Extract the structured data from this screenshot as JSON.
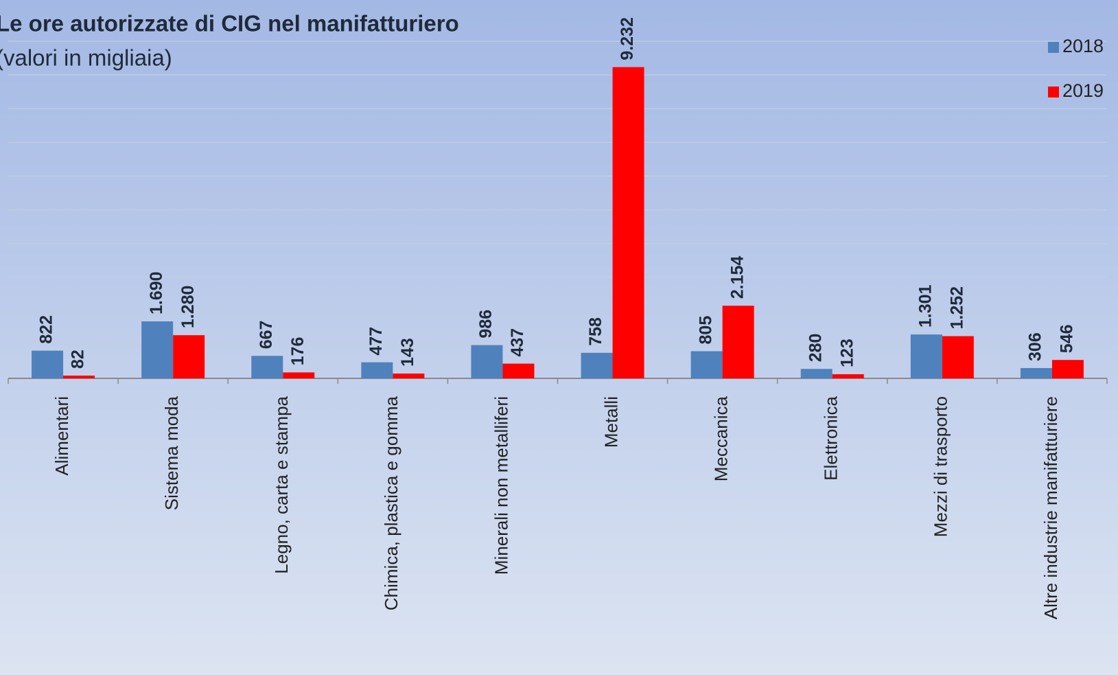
{
  "chart_data": {
    "type": "bar",
    "title": "Le ore autorizzate di CIG nel manifatturiero",
    "subtitle": "(valori in migliaia)",
    "categories": [
      "Alimentari",
      "Sistema moda",
      "Legno, carta e stampa",
      "Chimica, plastica e gomma",
      "Minerali non metalliferi",
      "Metalli",
      "Meccanica",
      "Elettronica",
      "Mezzi di trasporto",
      "Altre industrie manifatturiere"
    ],
    "series": [
      {
        "name": "2018",
        "color": "#4f81bd",
        "values": [
          822,
          1690,
          667,
          477,
          986,
          758,
          805,
          280,
          1301,
          306
        ],
        "value_labels": [
          "822",
          "1.690",
          "667",
          "477",
          "986",
          "758",
          "805",
          "280",
          "1.301",
          "306"
        ]
      },
      {
        "name": "2019",
        "color": "#ff0000",
        "values": [
          82,
          1280,
          176,
          143,
          437,
          9232,
          2154,
          123,
          1252,
          546
        ],
        "value_labels": [
          "82",
          "1.280",
          "176",
          "143",
          "437",
          "9.232",
          "2.154",
          "123",
          "1.252",
          "546"
        ]
      }
    ],
    "ylim": [
      0,
      10000
    ],
    "yticks": [
      0,
      1000,
      2000,
      3000,
      4000,
      5000,
      6000,
      7000,
      8000,
      9000,
      10000
    ],
    "grid": true,
    "legend": "top-right"
  }
}
